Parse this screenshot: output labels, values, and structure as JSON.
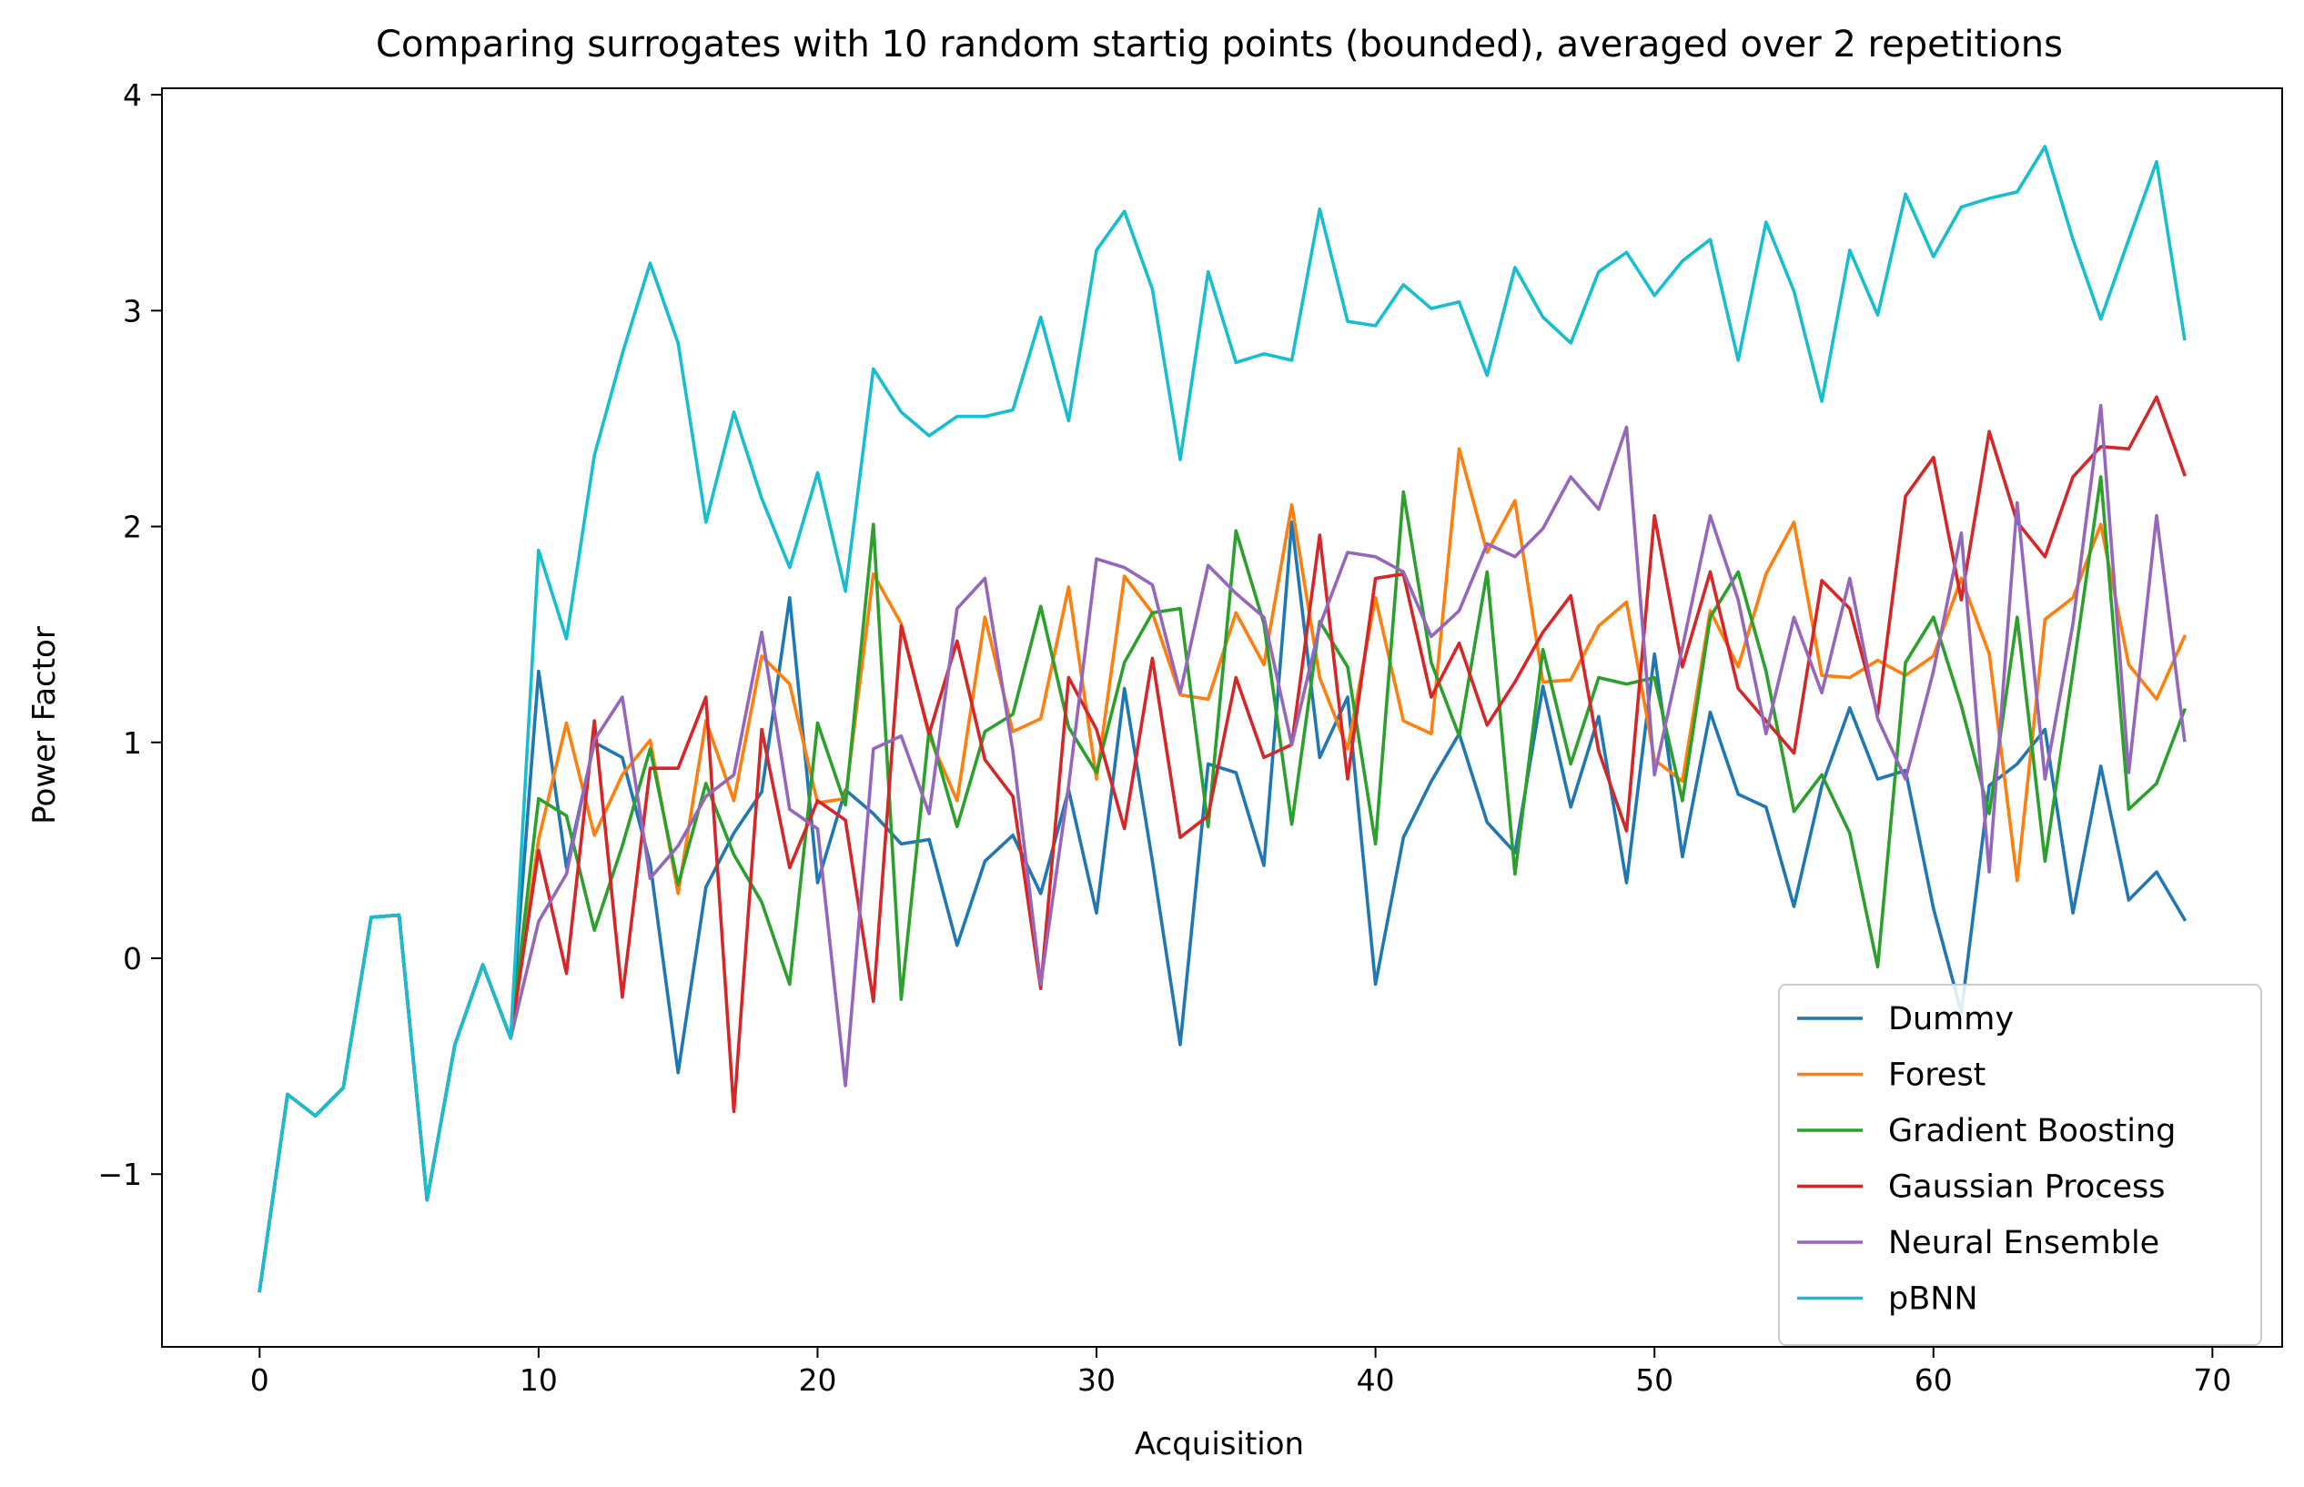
{
  "chart_data": {
    "type": "line",
    "title": "Comparing surrogates with 10 random startig points (bounded), averaged over 2 repetitions",
    "xlabel": "Acquisition",
    "ylabel": "Power Factor",
    "xlim": [
      -3.5,
      72.5
    ],
    "ylim": [
      -1.8,
      4.03
    ],
    "xticks": [
      0,
      10,
      20,
      30,
      40,
      50,
      60,
      70
    ],
    "yticks": [
      -1,
      0,
      1,
      2,
      3,
      4
    ],
    "ytick_labels": [
      "−1",
      "0",
      "1",
      "2",
      "3",
      "4"
    ],
    "grid": false,
    "legend_position": "lower-right",
    "x": [
      0,
      1,
      2,
      3,
      4,
      5,
      6,
      7,
      8,
      9,
      10,
      11,
      12,
      13,
      14,
      15,
      16,
      17,
      18,
      19,
      20,
      21,
      22,
      23,
      24,
      25,
      26,
      27,
      28,
      29,
      30,
      31,
      32,
      33,
      34,
      35,
      36,
      37,
      38,
      39,
      40,
      41,
      42,
      43,
      44,
      45,
      46,
      47,
      48,
      49,
      50,
      51,
      52,
      53,
      54,
      55,
      56,
      57,
      58,
      59,
      60,
      61,
      62,
      63,
      64,
      65,
      66,
      67,
      68,
      69
    ],
    "series": [
      {
        "name": "Dummy",
        "color": "#1f77b4",
        "values": [
          -1.54,
          -0.63,
          -0.73,
          -0.6,
          0.19,
          0.2,
          -1.12,
          -0.4,
          -0.03,
          -0.37,
          1.33,
          0.42,
          1.0,
          0.93,
          0.44,
          -0.53,
          0.33,
          0.58,
          0.77,
          1.67,
          0.35,
          0.78,
          0.67,
          0.53,
          0.55,
          0.06,
          0.45,
          0.57,
          0.3,
          0.78,
          0.21,
          1.25,
          0.45,
          -0.4,
          0.9,
          0.86,
          0.43,
          2.02,
          0.93,
          1.21,
          -0.12,
          0.56,
          0.82,
          1.04,
          0.63,
          0.49,
          1.26,
          0.7,
          1.12,
          0.35,
          1.41,
          0.47,
          1.14,
          0.76,
          0.7,
          0.24,
          0.8,
          1.16,
          0.83,
          0.87,
          0.23,
          -0.25,
          0.8,
          0.9,
          1.06,
          0.21,
          0.89,
          0.27,
          0.4,
          0.18
        ]
      },
      {
        "name": "Forest",
        "color": "#ff7f0e",
        "values": [
          -1.54,
          -0.63,
          -0.73,
          -0.6,
          0.19,
          0.2,
          -1.12,
          -0.4,
          -0.03,
          -0.37,
          0.55,
          1.09,
          0.57,
          0.85,
          1.01,
          0.3,
          1.1,
          0.73,
          1.4,
          1.27,
          0.72,
          0.74,
          1.78,
          1.55,
          1.03,
          0.73,
          1.58,
          1.05,
          1.11,
          1.72,
          0.83,
          1.77,
          1.6,
          1.22,
          1.2,
          1.6,
          1.36,
          2.1,
          1.3,
          0.97,
          1.67,
          1.1,
          1.04,
          2.36,
          1.88,
          2.12,
          1.28,
          1.29,
          1.54,
          1.65,
          0.92,
          0.82,
          1.61,
          1.35,
          1.78,
          2.02,
          1.31,
          1.3,
          1.38,
          1.31,
          1.4,
          1.76,
          1.41,
          0.36,
          1.57,
          1.67,
          2.01,
          1.36,
          1.2,
          1.49
        ]
      },
      {
        "name": "Gradient Boosting",
        "color": "#2ca02c",
        "values": [
          -1.54,
          -0.63,
          -0.73,
          -0.6,
          0.19,
          0.2,
          -1.12,
          -0.4,
          -0.03,
          -0.37,
          0.74,
          0.66,
          0.13,
          0.52,
          0.97,
          0.34,
          0.81,
          0.48,
          0.26,
          -0.12,
          1.09,
          0.71,
          2.01,
          -0.19,
          1.06,
          0.61,
          1.05,
          1.13,
          1.63,
          1.07,
          0.86,
          1.37,
          1.6,
          1.62,
          0.61,
          1.98,
          1.55,
          0.62,
          1.56,
          1.35,
          0.53,
          2.16,
          1.37,
          1.03,
          1.79,
          0.39,
          1.43,
          0.9,
          1.3,
          1.27,
          1.3,
          0.73,
          1.58,
          1.79,
          1.33,
          0.68,
          0.85,
          0.58,
          -0.04,
          1.37,
          1.58,
          1.17,
          0.67,
          1.58,
          0.45,
          1.33,
          2.23,
          0.69,
          0.81,
          1.15
        ]
      },
      {
        "name": "Gaussian Process",
        "color": "#d62728",
        "values": [
          -1.54,
          -0.63,
          -0.73,
          -0.6,
          0.19,
          0.2,
          -1.12,
          -0.4,
          -0.03,
          -0.37,
          0.5,
          -0.07,
          1.1,
          -0.18,
          0.88,
          0.88,
          1.21,
          -0.71,
          1.06,
          0.42,
          0.73,
          0.64,
          -0.2,
          1.54,
          1.04,
          1.47,
          0.92,
          0.75,
          -0.14,
          1.3,
          1.06,
          0.6,
          1.39,
          0.56,
          0.66,
          1.3,
          0.93,
          0.99,
          1.96,
          0.83,
          1.76,
          1.78,
          1.21,
          1.46,
          1.08,
          1.28,
          1.51,
          1.68,
          0.96,
          0.59,
          2.05,
          1.35,
          1.79,
          1.25,
          1.1,
          0.95,
          1.75,
          1.62,
          1.13,
          2.14,
          2.32,
          1.66,
          2.44,
          2.02,
          1.86,
          2.23,
          2.37,
          2.36,
          2.6,
          2.24
        ]
      },
      {
        "name": "Neural Ensemble",
        "color": "#9467bd",
        "values": [
          -1.54,
          -0.63,
          -0.73,
          -0.6,
          0.19,
          0.2,
          -1.12,
          -0.4,
          -0.03,
          -0.37,
          0.17,
          0.39,
          1.01,
          1.21,
          0.37,
          0.52,
          0.75,
          0.85,
          1.51,
          0.69,
          0.6,
          -0.59,
          0.97,
          1.03,
          0.67,
          1.62,
          1.76,
          0.96,
          -0.12,
          0.8,
          1.85,
          1.81,
          1.73,
          1.23,
          1.82,
          1.69,
          1.58,
          0.99,
          1.54,
          1.88,
          1.86,
          1.79,
          1.49,
          1.61,
          1.92,
          1.86,
          1.99,
          2.23,
          2.08,
          2.46,
          0.85,
          1.44,
          2.05,
          1.66,
          1.04,
          1.58,
          1.23,
          1.76,
          1.11,
          0.83,
          1.33,
          1.97,
          0.4,
          2.11,
          0.83,
          1.55,
          2.56,
          0.86,
          2.05,
          1.01
        ]
      },
      {
        "name": "pBNN",
        "color": "#17becf",
        "values": [
          -1.54,
          -0.63,
          -0.73,
          -0.6,
          0.19,
          0.2,
          -1.12,
          -0.4,
          -0.03,
          -0.37,
          1.89,
          1.48,
          2.33,
          2.8,
          3.22,
          2.85,
          2.02,
          2.53,
          2.13,
          1.81,
          2.25,
          1.7,
          2.73,
          2.53,
          2.42,
          2.51,
          2.51,
          2.54,
          2.97,
          2.49,
          3.28,
          3.46,
          3.1,
          2.31,
          3.18,
          2.76,
          2.8,
          2.77,
          3.47,
          2.95,
          2.93,
          3.12,
          3.01,
          3.04,
          2.7,
          3.2,
          2.97,
          2.85,
          3.18,
          3.27,
          3.07,
          3.23,
          3.33,
          2.77,
          3.41,
          3.09,
          2.58,
          3.28,
          2.98,
          3.54,
          3.25,
          3.48,
          3.52,
          3.55,
          3.76,
          3.33,
          2.96,
          3.33,
          3.69,
          2.87
        ]
      }
    ]
  }
}
